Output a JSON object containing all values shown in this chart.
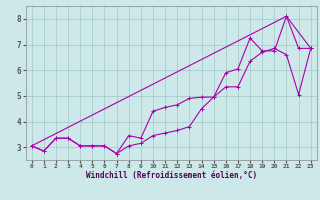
{
  "xlabel": "Windchill (Refroidissement éolien,°C)",
  "bg_color": "#cce8e8",
  "grid_color": "#aacccc",
  "line_color": "#aa00aa",
  "xlim": [
    -0.5,
    23.5
  ],
  "ylim": [
    2.5,
    8.5
  ],
  "xticks": [
    0,
    1,
    2,
    3,
    4,
    5,
    6,
    7,
    8,
    9,
    10,
    11,
    12,
    13,
    14,
    15,
    16,
    17,
    18,
    19,
    20,
    21,
    22,
    23
  ],
  "yticks": [
    3,
    4,
    5,
    6,
    7,
    8
  ],
  "line1_x": [
    0,
    1,
    2,
    3,
    4,
    5,
    6,
    7,
    8,
    9,
    10,
    11,
    12,
    13,
    14,
    15,
    16,
    17,
    18,
    19,
    20,
    21,
    22,
    23
  ],
  "line1_y": [
    3.05,
    2.85,
    3.35,
    3.35,
    3.05,
    3.05,
    3.05,
    2.75,
    3.05,
    3.15,
    3.45,
    3.55,
    3.65,
    3.8,
    4.5,
    4.95,
    5.35,
    5.35,
    6.35,
    6.7,
    6.85,
    6.6,
    5.05,
    6.85
  ],
  "line2_x": [
    0,
    1,
    2,
    3,
    4,
    5,
    6,
    7,
    8,
    9,
    10,
    11,
    12,
    13,
    14,
    15,
    16,
    17,
    18,
    19,
    20,
    21,
    22,
    23
  ],
  "line2_y": [
    3.05,
    2.85,
    3.35,
    3.35,
    3.05,
    3.05,
    3.05,
    2.75,
    3.45,
    3.35,
    4.4,
    4.55,
    4.65,
    4.9,
    4.95,
    4.95,
    5.9,
    6.05,
    7.25,
    6.75,
    6.75,
    8.1,
    6.85,
    6.85
  ],
  "line3_x": [
    0,
    21,
    23
  ],
  "line3_y": [
    3.05,
    8.1,
    6.85
  ]
}
